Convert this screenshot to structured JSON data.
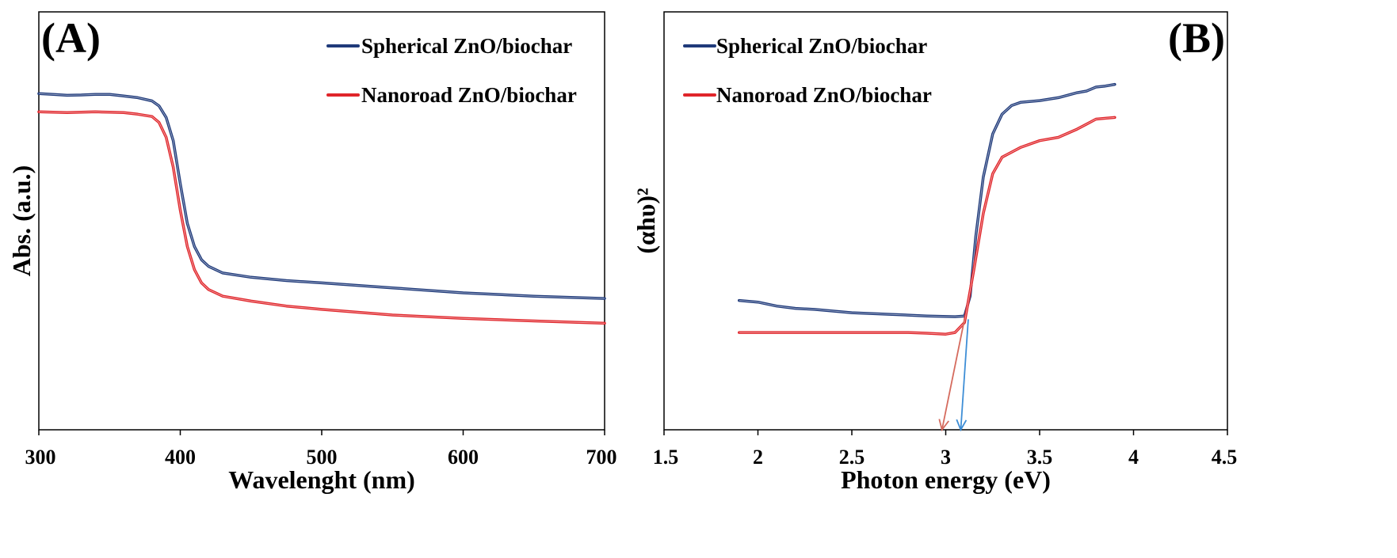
{
  "chart_data": [
    {
      "type": "line",
      "panel_label": "(A)",
      "xlabel": "Wavelenght (nm)",
      "ylabel": "Abs. (a.u.)",
      "xlim": [
        300,
        700
      ],
      "ylim": [
        0,
        1
      ],
      "x_ticks": [
        "300",
        "400",
        "500",
        "600",
        "700"
      ],
      "y_ticks": [],
      "legend_position": "top-right",
      "series": [
        {
          "name": "Spherical ZnO/biochar",
          "color": "#1f3a7a",
          "x": [
            300,
            310,
            320,
            330,
            340,
            350,
            360,
            370,
            380,
            385,
            390,
            395,
            400,
            405,
            410,
            415,
            420,
            430,
            450,
            475,
            500,
            550,
            600,
            650,
            700
          ],
          "y": [
            0.992,
            0.99,
            0.987,
            0.988,
            0.99,
            0.99,
            0.985,
            0.98,
            0.97,
            0.955,
            0.92,
            0.85,
            0.72,
            0.6,
            0.53,
            0.49,
            0.47,
            0.45,
            0.437,
            0.427,
            0.42,
            0.405,
            0.39,
            0.38,
            0.373
          ]
        },
        {
          "name": "Nanoroad ZnO/biochar",
          "color": "#e0252a",
          "x": [
            300,
            310,
            320,
            330,
            340,
            350,
            360,
            370,
            380,
            385,
            390,
            395,
            400,
            405,
            410,
            415,
            420,
            430,
            450,
            475,
            500,
            550,
            600,
            650,
            700
          ],
          "y": [
            0.937,
            0.936,
            0.935,
            0.936,
            0.937,
            0.936,
            0.935,
            0.93,
            0.923,
            0.905,
            0.86,
            0.77,
            0.64,
            0.53,
            0.46,
            0.42,
            0.4,
            0.38,
            0.365,
            0.35,
            0.34,
            0.323,
            0.313,
            0.305,
            0.298
          ]
        }
      ]
    },
    {
      "type": "line",
      "panel_label": "(B)",
      "xlabel": "Photon energy (eV)",
      "ylabel": "(αhυ)²",
      "xlim": [
        1.5,
        4.5
      ],
      "ylim": [
        0,
        1
      ],
      "x_ticks": [
        "1.5",
        "2",
        "2.5",
        "3",
        "3.5",
        "4",
        "4.5"
      ],
      "y_ticks": [],
      "legend_position": "top-left",
      "band_gap_arrows": [
        {
          "series": "Nanoroad ZnO/biochar",
          "color": "#d56b5e",
          "x_top": 3.1,
          "y_top": 0.31,
          "x_bottom": 2.98,
          "y_bottom": 0
        },
        {
          "series": "Spherical ZnO/biochar",
          "color": "#3e8ed6",
          "x_top": 3.12,
          "y_top": 0.31,
          "x_bottom": 3.08,
          "y_bottom": 0
        }
      ],
      "series": [
        {
          "name": "Spherical ZnO/biochar",
          "color": "#1f3a7a",
          "x": [
            1.9,
            2.0,
            2.1,
            2.2,
            2.3,
            2.5,
            2.7,
            2.9,
            3.05,
            3.1,
            3.13,
            3.16,
            3.2,
            3.25,
            3.3,
            3.35,
            3.4,
            3.5,
            3.6,
            3.7,
            3.75,
            3.8,
            3.85,
            3.9
          ],
          "y": [
            0.367,
            0.362,
            0.35,
            0.343,
            0.34,
            0.33,
            0.325,
            0.32,
            0.318,
            0.32,
            0.38,
            0.56,
            0.74,
            0.87,
            0.93,
            0.956,
            0.966,
            0.971,
            0.98,
            0.995,
            1.0,
            1.012,
            1.015,
            1.02
          ]
        },
        {
          "name": "Nanoroad ZnO/biochar",
          "color": "#e0252a",
          "x": [
            1.9,
            2.0,
            2.2,
            2.4,
            2.6,
            2.8,
            2.9,
            3.0,
            3.05,
            3.1,
            3.15,
            3.2,
            3.25,
            3.3,
            3.4,
            3.5,
            3.6,
            3.7,
            3.75,
            3.8,
            3.9
          ],
          "y": [
            0.27,
            0.27,
            0.27,
            0.27,
            0.27,
            0.27,
            0.268,
            0.265,
            0.27,
            0.3,
            0.46,
            0.63,
            0.75,
            0.8,
            0.83,
            0.85,
            0.86,
            0.885,
            0.9,
            0.915,
            0.92
          ]
        }
      ]
    }
  ]
}
